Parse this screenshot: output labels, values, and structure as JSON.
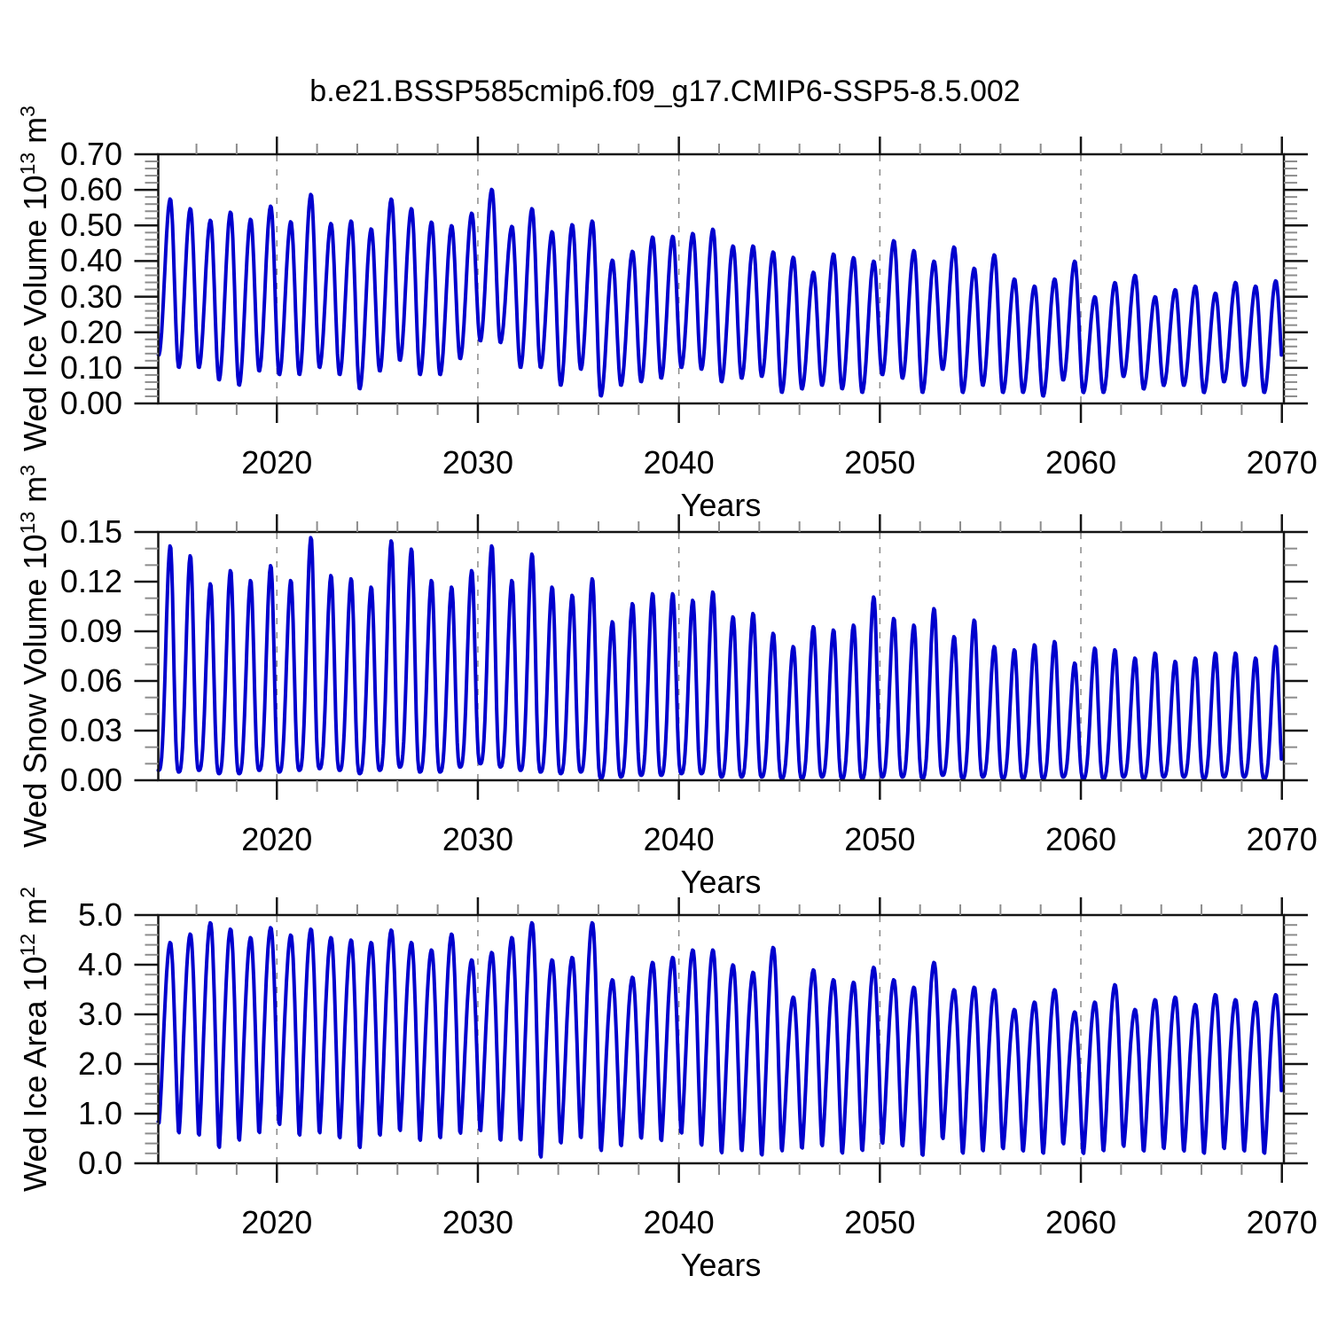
{
  "title": "b.e21.BSSP585cmip6.f09_g17.CMIP6-SSP5-8.5.002",
  "colors": {
    "line": "#0000CD",
    "frame": "#141414",
    "major_tick": "#141414",
    "minor_tick": "#8c8c8c",
    "gridline": "#8a8a8a",
    "background": "#ffffff",
    "text": "#000000"
  },
  "x_axis": {
    "label": "Years",
    "range_years": [
      2014.1,
      2070.1
    ],
    "major_ticks": [
      2020,
      2030,
      2040,
      2050,
      2060,
      2070
    ],
    "minor_tick_interval_years": 2,
    "gridline_years": [
      2020,
      2030,
      2040,
      2050,
      2060
    ],
    "gridline_style": "dashed"
  },
  "chart_data": [
    {
      "type": "line",
      "name": "wed_ice_volume",
      "ylabel_text": "Wed Ice Volume 10^13 m^3",
      "ylabel": {
        "base": "Wed Ice Volume 10",
        "sup1": "13",
        "mid": " m",
        "sup2": "3"
      },
      "ylim": [
        0,
        0.7
      ],
      "ytick_labels": [
        "0.00",
        "0.10",
        "0.20",
        "0.30",
        "0.40",
        "0.50",
        "0.60",
        "0.70"
      ],
      "ytick_step": 0.1,
      "ytick_minor_step": 0.02,
      "start_year": 2014,
      "peak_phase": 0.7,
      "trough_phase": 0.12,
      "shape_power": 1.0,
      "annual_max": [
        0.575,
        0.548,
        0.515,
        0.538,
        0.518,
        0.555,
        0.511,
        0.588,
        0.506,
        0.513,
        0.491,
        0.575,
        0.548,
        0.51,
        0.5,
        0.535,
        0.602,
        0.498,
        0.548,
        0.483,
        0.503,
        0.513,
        0.403,
        0.428,
        0.468,
        0.47,
        0.478,
        0.49,
        0.443,
        0.443,
        0.426,
        0.411,
        0.369,
        0.42,
        0.41,
        0.4,
        0.458,
        0.43,
        0.4,
        0.44,
        0.38,
        0.418,
        0.35,
        0.33,
        0.35,
        0.4,
        0.3,
        0.34,
        0.36,
        0.3,
        0.32,
        0.33,
        0.31,
        0.34,
        0.33,
        0.345
      ],
      "annual_min": [
        0.135,
        0.1,
        0.1,
        0.065,
        0.05,
        0.09,
        0.08,
        0.08,
        0.1,
        0.08,
        0.04,
        0.09,
        0.12,
        0.08,
        0.08,
        0.125,
        0.175,
        0.17,
        0.1,
        0.1,
        0.05,
        0.095,
        0.02,
        0.05,
        0.06,
        0.07,
        0.1,
        0.095,
        0.06,
        0.07,
        0.075,
        0.03,
        0.04,
        0.05,
        0.04,
        0.03,
        0.08,
        0.07,
        0.03,
        0.095,
        0.03,
        0.05,
        0.03,
        0.03,
        0.02,
        0.065,
        0.03,
        0.03,
        0.075,
        0.04,
        0.05,
        0.05,
        0.03,
        0.06,
        0.05,
        0.03,
        0.06
      ]
    },
    {
      "type": "line",
      "name": "wed_snow_volume",
      "ylabel_text": "Wed Snow Volume 10^13 m^3",
      "ylabel": {
        "base": "Wed Snow Volume 10",
        "sup1": "13",
        "mid": " m",
        "sup2": "3"
      },
      "ylim": [
        0,
        0.15
      ],
      "ytick_labels": [
        "0.00",
        "0.03",
        "0.06",
        "0.09",
        "0.12",
        "0.15"
      ],
      "ytick_step": 0.03,
      "ytick_minor_step": 0.01,
      "start_year": 2014,
      "peak_phase": 0.7,
      "trough_phase": 0.12,
      "shape_power": 1.5,
      "annual_max": [
        0.142,
        0.136,
        0.119,
        0.127,
        0.121,
        0.13,
        0.121,
        0.147,
        0.124,
        0.122,
        0.117,
        0.145,
        0.14,
        0.121,
        0.117,
        0.127,
        0.142,
        0.121,
        0.137,
        0.117,
        0.112,
        0.122,
        0.096,
        0.107,
        0.113,
        0.113,
        0.109,
        0.114,
        0.099,
        0.101,
        0.089,
        0.081,
        0.093,
        0.091,
        0.094,
        0.111,
        0.098,
        0.094,
        0.104,
        0.087,
        0.097,
        0.081,
        0.079,
        0.082,
        0.084,
        0.071,
        0.08,
        0.079,
        0.074,
        0.077,
        0.072,
        0.074,
        0.077,
        0.077,
        0.074,
        0.081
      ],
      "annual_min": [
        0.006,
        0.005,
        0.006,
        0.004,
        0.004,
        0.006,
        0.005,
        0.006,
        0.007,
        0.006,
        0.004,
        0.006,
        0.008,
        0.005,
        0.005,
        0.008,
        0.01,
        0.008,
        0.006,
        0.005,
        0.004,
        0.005,
        0.001,
        0.002,
        0.003,
        0.003,
        0.004,
        0.004,
        0.002,
        0.002,
        0.002,
        0.001,
        0.001,
        0.002,
        0.001,
        0.001,
        0.002,
        0.002,
        0.001,
        0.003,
        0.001,
        0.002,
        0.001,
        0.001,
        0.001,
        0.002,
        0.001,
        0.001,
        0.002,
        0.001,
        0.002,
        0.002,
        0.001,
        0.002,
        0.002,
        0.001,
        0.002
      ]
    },
    {
      "type": "line",
      "name": "wed_ice_area",
      "ylabel_text": "Wed Ice Area 10^12 m^2",
      "ylabel": {
        "base": "Wed Ice Area 10",
        "sup1": "12",
        "mid": " m",
        "sup2": "2"
      },
      "ylim": [
        0,
        5.0
      ],
      "ytick_labels": [
        "0.0",
        "1.0",
        "2.0",
        "3.0",
        "4.0",
        "5.0"
      ],
      "ytick_step": 1.0,
      "ytick_minor_step": 0.2,
      "start_year": 2014,
      "peak_phase": 0.7,
      "trough_phase": 0.12,
      "shape_power": 0.72,
      "annual_max": [
        4.45,
        4.62,
        4.85,
        4.72,
        4.55,
        4.75,
        4.6,
        4.72,
        4.55,
        4.5,
        4.45,
        4.7,
        4.45,
        4.3,
        4.62,
        4.1,
        4.25,
        4.55,
        4.85,
        4.1,
        4.15,
        4.85,
        3.7,
        3.75,
        4.05,
        4.15,
        4.3,
        4.3,
        4.0,
        3.85,
        4.35,
        3.35,
        3.9,
        3.7,
        3.65,
        3.95,
        3.7,
        3.55,
        4.05,
        3.5,
        3.55,
        3.5,
        3.1,
        3.25,
        3.5,
        3.05,
        3.25,
        3.6,
        3.1,
        3.3,
        3.35,
        3.2,
        3.4,
        3.3,
        3.25,
        3.4
      ],
      "annual_min": [
        0.75,
        0.55,
        0.5,
        0.25,
        0.4,
        0.55,
        0.72,
        0.5,
        0.55,
        0.45,
        0.25,
        0.5,
        0.6,
        0.4,
        0.45,
        0.55,
        0.6,
        0.4,
        0.4,
        0.06,
        0.35,
        0.45,
        0.2,
        0.3,
        0.45,
        0.4,
        0.55,
        0.3,
        0.15,
        0.2,
        0.1,
        0.2,
        0.25,
        0.3,
        0.15,
        0.2,
        0.35,
        0.3,
        0.1,
        0.45,
        0.15,
        0.2,
        0.25,
        0.2,
        0.15,
        0.35,
        0.15,
        0.2,
        0.3,
        0.2,
        0.25,
        0.2,
        0.15,
        0.25,
        0.2,
        0.15,
        0.25
      ]
    }
  ]
}
